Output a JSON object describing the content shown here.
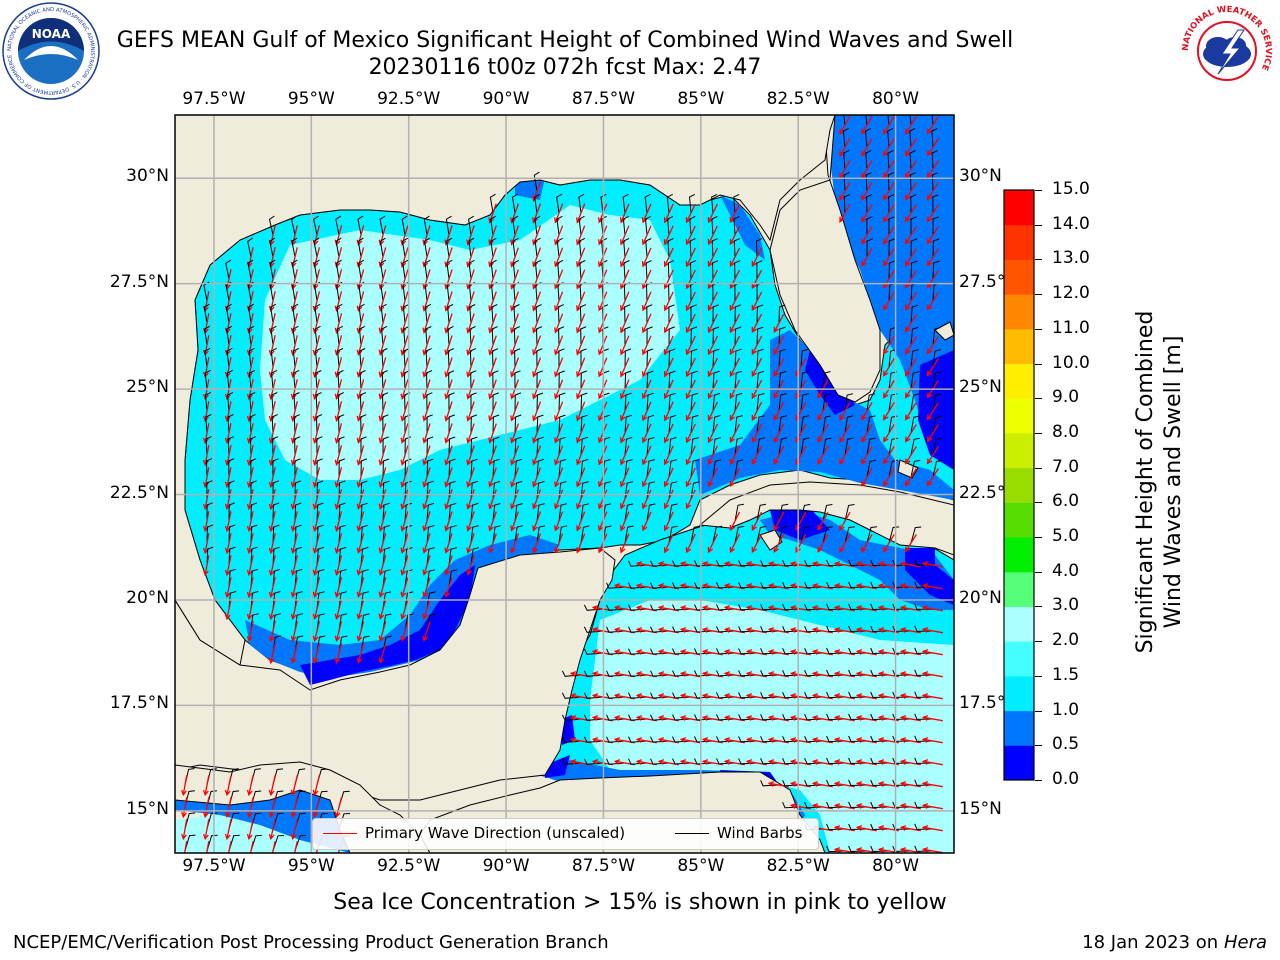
{
  "header": {
    "title_line1": "GEFS MEAN Gulf of Mexico Significant Height of Combined Wind Waves and Swell",
    "title_line2": "20230116 t00z 072h fcst   Max: 2.47",
    "noaa_logo_text": "NOAA",
    "noaa_logo_ring_text": "NATIONAL OCEANIC AND ATMOSPHERIC ADMINISTRATION · U.S. DEPARTMENT OF COMMERCE",
    "nws_logo_ring_text": "NATIONAL WEATHER SERVICE"
  },
  "map": {
    "lon_labels": [
      "97.5°W",
      "95°W",
      "92.5°W",
      "90°W",
      "87.5°W",
      "85°W",
      "82.5°W",
      "80°W"
    ],
    "lat_labels": [
      "30°N",
      "27.5°N",
      "25°N",
      "22.5°N",
      "20°N",
      "17.5°N",
      "15°N"
    ],
    "lon_range": [
      -98.5,
      -78.5
    ],
    "lat_range": [
      14,
      31.5
    ],
    "land_color": "#efecdc",
    "grid": true,
    "max_value": 2.47,
    "legend": {
      "wave_label": "Primary Wave Direction (unscaled)",
      "barb_label": "Wind Barbs",
      "wave_color": "#ff0000",
      "barb_color": "#000000"
    }
  },
  "colorbar": {
    "title_line1": "Significant Height of Combined",
    "title_line2": "Wind Waves and Swell [m]",
    "tick_labels": [
      "0.0",
      "0.5",
      "1.0",
      "1.5",
      "2.0",
      "3.0",
      "4.0",
      "5.0",
      "6.0",
      "7.0",
      "8.0",
      "9.0",
      "10.0",
      "11.0",
      "12.0",
      "13.0",
      "14.0",
      "15.0"
    ],
    "colors": [
      "#0000ff",
      "#0077ff",
      "#00eeff",
      "#44ffff",
      "#aaffff",
      "#55ff77",
      "#00ee00",
      "#55dd00",
      "#99dd00",
      "#ccee00",
      "#eeff00",
      "#ffee00",
      "#ffbb00",
      "#ff8800",
      "#ff5500",
      "#ff3300",
      "#ff0000"
    ]
  },
  "footer": {
    "sea_ice_note": "Sea Ice Concentration > 15% is shown in pink to yellow",
    "left": "NCEP/EMC/Verification Post Processing Product Generation Branch",
    "right_prefix": "18 Jan 2023 on ",
    "right_machine": "Hera"
  }
}
